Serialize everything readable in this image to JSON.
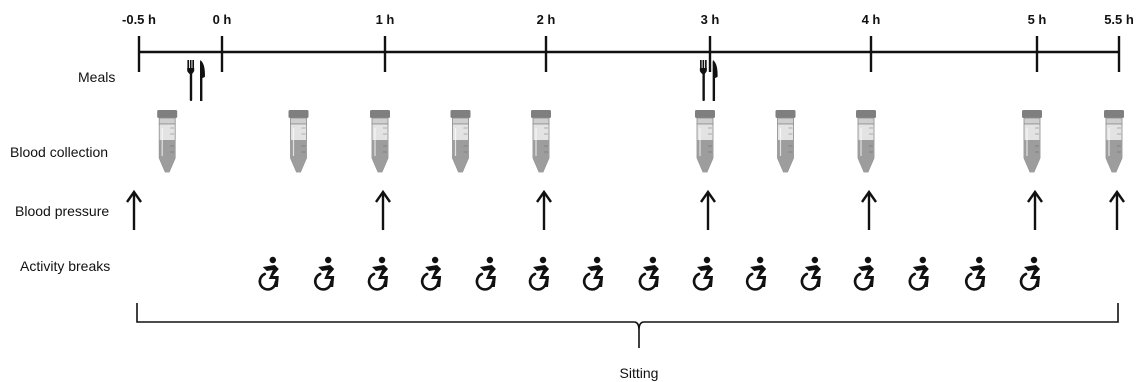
{
  "timeline": {
    "ticks": [
      {
        "t": -0.5,
        "label": "-0.5 h"
      },
      {
        "t": 0,
        "label": "0 h"
      },
      {
        "t": 1,
        "label": "1 h"
      },
      {
        "t": 2,
        "label": "2 h"
      },
      {
        "t": 3,
        "label": "3 h"
      },
      {
        "t": 4,
        "label": "4 h"
      },
      {
        "t": 5,
        "label": "5 h"
      },
      {
        "t": 5.5,
        "label": "5.5 h"
      }
    ]
  },
  "rows": {
    "meals": "Meals",
    "blood_collection": "Blood collection",
    "blood_pressure": "Blood pressure",
    "activity_breaks": "Activity breaks"
  },
  "meals_times_h": [
    -0.1,
    3.05
  ],
  "blood_collection_times_h": [
    -0.3,
    0.5,
    1,
    1.5,
    2,
    3,
    3.5,
    4,
    5,
    5.5
  ],
  "blood_pressure_times_h": [
    -0.5,
    1,
    2,
    3,
    4,
    5,
    5.5
  ],
  "activity_break_times_h": [
    0.33,
    0.67,
    1,
    1.33,
    1.67,
    2,
    2.33,
    2.67,
    3,
    3.33,
    3.67,
    4,
    4.33,
    4.67,
    5
  ],
  "sitting_label": "Sitting",
  "icons": {
    "meal": "fork-knife-icon",
    "blood_collection": "blood-tube-icon",
    "blood_pressure": "up-arrow-icon",
    "activity_break": "accessible-activity-icon"
  },
  "colors": {
    "line": "#111111",
    "tube_cap": "#8a8a8a",
    "tube_fill": "#9b9b9b",
    "tube_glass": "#d9d9d9"
  }
}
